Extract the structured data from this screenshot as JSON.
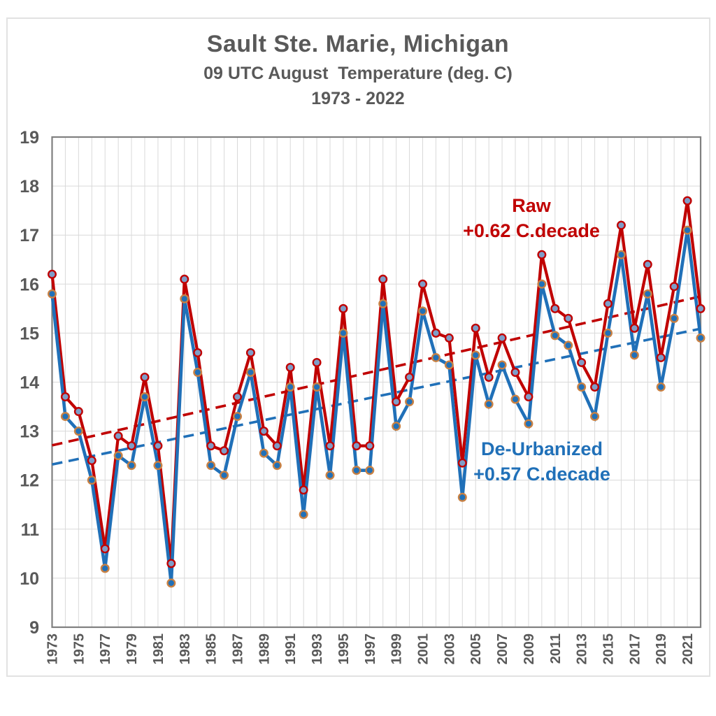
{
  "page": {
    "title": "Sault Ste. Marie, Michigan",
    "subtitle": "09 UTC August  Temperature (deg. C)",
    "period": "1973 - 2022"
  },
  "legend": {
    "raw_label": "Raw",
    "raw_trend_label": "+0.62 C.decade",
    "deurbanized_label": "De-Urbanized",
    "deurbanized_trend_label": "+0.57 C.decade"
  },
  "colors": {
    "raw_line": "#c00000",
    "raw_marker_fill": "#7e9dc8",
    "deurbanized_line": "#2070b8",
    "deurbanized_marker_ring": "#c98143",
    "gridline": "#d9d9d9",
    "plot_border": "#808080",
    "axis_text": "#595959",
    "page_frame": "#e2e2e2"
  },
  "chart_data": {
    "type": "line",
    "title": "Sault Ste. Marie, Michigan",
    "subtitle": "09 UTC August  Temperature (deg. C)",
    "period": "1973 - 2022",
    "ylabel": "Temperature (deg. C)",
    "ylim": [
      9,
      19
    ],
    "y_ticks": [
      9,
      10,
      11,
      12,
      13,
      14,
      15,
      16,
      17,
      18,
      19
    ],
    "grid": true,
    "x": [
      1973,
      1974,
      1975,
      1976,
      1977,
      1978,
      1979,
      1980,
      1981,
      1982,
      1983,
      1984,
      1985,
      1986,
      1987,
      1988,
      1989,
      1990,
      1991,
      1992,
      1993,
      1994,
      1995,
      1996,
      1997,
      1998,
      1999,
      2000,
      2001,
      2002,
      2003,
      2004,
      2005,
      2006,
      2007,
      2008,
      2009,
      2010,
      2011,
      2012,
      2013,
      2014,
      2015,
      2016,
      2017,
      2018,
      2019,
      2020,
      2021,
      2022
    ],
    "x_tick_labels": [
      "1973",
      "1975",
      "1977",
      "1979",
      "1981",
      "1983",
      "1985",
      "1987",
      "1989",
      "1991",
      "1993",
      "1995",
      "1997",
      "1999",
      "2001",
      "2003",
      "2005",
      "2007",
      "2009",
      "2011",
      "2013",
      "2015",
      "2017",
      "2019",
      "2021"
    ],
    "series": [
      {
        "name": "Raw",
        "color": "#c00000",
        "values": [
          16.2,
          13.7,
          13.4,
          12.4,
          10.6,
          12.9,
          12.7,
          14.1,
          12.7,
          10.3,
          16.1,
          14.6,
          12.7,
          12.6,
          13.7,
          14.6,
          13.0,
          12.7,
          14.3,
          11.8,
          14.4,
          12.7,
          15.5,
          12.7,
          12.7,
          16.1,
          13.6,
          14.1,
          16.0,
          15.0,
          14.9,
          12.35,
          15.1,
          14.1,
          14.9,
          14.2,
          13.7,
          16.6,
          15.5,
          15.3,
          14.4,
          13.9,
          15.6,
          17.2,
          15.1,
          16.4,
          14.5,
          15.95,
          17.7,
          15.5
        ]
      },
      {
        "name": "De-Urbanized",
        "color": "#2070b8",
        "values": [
          15.8,
          13.3,
          13.0,
          12.0,
          10.2,
          12.5,
          12.3,
          13.7,
          12.3,
          9.9,
          15.7,
          14.2,
          12.3,
          12.1,
          13.3,
          14.2,
          12.55,
          12.3,
          13.9,
          11.3,
          13.9,
          12.1,
          15.0,
          12.2,
          12.2,
          15.6,
          13.1,
          13.6,
          15.45,
          14.5,
          14.35,
          11.65,
          14.55,
          13.55,
          14.35,
          13.65,
          13.15,
          16.0,
          14.95,
          14.75,
          13.9,
          13.3,
          15.0,
          16.6,
          14.55,
          15.8,
          13.9,
          15.3,
          17.1,
          14.9
        ]
      }
    ],
    "trend_lines": [
      {
        "name": "Raw trend",
        "color": "#c00000",
        "style": "dashed",
        "slope_c_per_decade": 0.62,
        "value_1973": 12.71,
        "value_2022": 15.75
      },
      {
        "name": "De-Urbanized trend",
        "color": "#2070b8",
        "style": "dashed",
        "slope_c_per_decade": 0.57,
        "value_1973": 12.32,
        "value_2022": 15.09
      }
    ],
    "legend_annotations": [
      {
        "text": "Raw",
        "color": "#c00000"
      },
      {
        "text": "+0.62 C.decade",
        "color": "#c00000"
      },
      {
        "text": "De-Urbanized",
        "color": "#2070b8"
      },
      {
        "text": "+0.57 C.decade",
        "color": "#2070b8"
      }
    ]
  }
}
